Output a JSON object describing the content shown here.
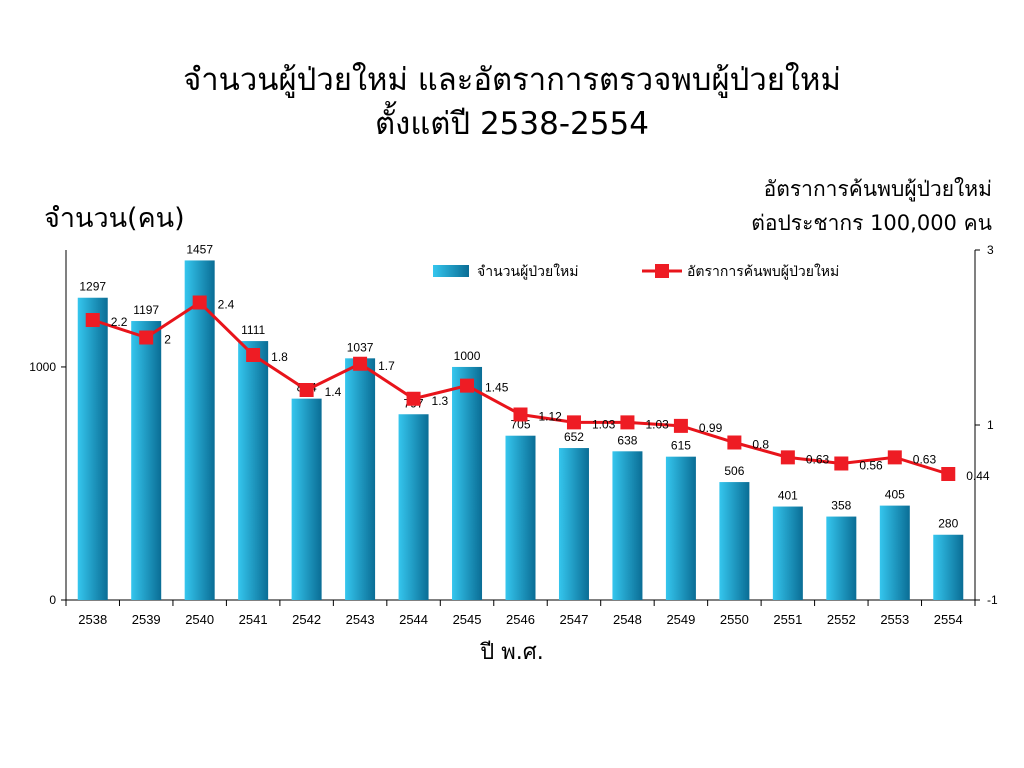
{
  "title_line1": "จำนวนผู้ป่วยใหม่ และอัตราการตรวจพบผู้ป่วยใหม่",
  "title_line2": "ตั้งแต่ปี 2538-2554",
  "left_axis_title": "จำนวน(คน)",
  "right_axis_title_line1": "อัตราการค้นพบผู้ป่วยใหม่",
  "right_axis_title_line2": "ต่อประชากร 100,000 คน",
  "x_axis_title": "ปี พ.ศ.",
  "colors": {
    "bar_light": "#35c6ee",
    "bar_dark": "#0a6d95",
    "line": "#e8141b",
    "marker": "#ee1c24"
  },
  "chart_data": {
    "type": "bar",
    "categories": [
      "2538",
      "2539",
      "2540",
      "2541",
      "2542",
      "2543",
      "2544",
      "2545",
      "2546",
      "2547",
      "2548",
      "2549",
      "2550",
      "2551",
      "2552",
      "2553",
      "2554"
    ],
    "series": [
      {
        "name": "จำนวนผู้ป่วยใหม่",
        "type": "bar",
        "axis": "left",
        "values": [
          1297,
          1197,
          1457,
          1111,
          864,
          1037,
          797,
          1000,
          705,
          652,
          638,
          615,
          506,
          401,
          358,
          405,
          280
        ],
        "labels": [
          "1297",
          "1197",
          "1457",
          "1111",
          "864",
          "1037",
          "797",
          "1000",
          "705",
          "652",
          "638",
          "615",
          "506",
          "401",
          "358",
          "405",
          "280"
        ]
      },
      {
        "name": "อัตราการค้นพบผู้ป่วยใหม่",
        "type": "line",
        "axis": "right",
        "values": [
          2.2,
          2,
          2.4,
          1.8,
          1.4,
          1.7,
          1.3,
          1.45,
          1.12,
          1.03,
          1.03,
          0.99,
          0.8,
          0.63,
          0.56,
          0.63,
          0.44
        ],
        "labels": [
          "2.2",
          "2",
          "2.4",
          "1.8",
          "1.4",
          "1.7",
          "1.3",
          "1.45",
          "1.12",
          "1.03",
          "1.03",
          "0.99",
          "0.8",
          "0.63",
          "0.56",
          "0.63",
          "0.44"
        ]
      }
    ],
    "left_axis": {
      "range": [
        0,
        1450
      ],
      "ticks": [
        0,
        1000
      ],
      "tick_labels": [
        "0",
        "1000"
      ]
    },
    "right_axis": {
      "range": [
        -1,
        3
      ],
      "ticks": [
        -1,
        1,
        3
      ],
      "tick_labels": [
        "-1",
        "1",
        "3"
      ]
    },
    "legend": "top-right",
    "grid": false
  }
}
